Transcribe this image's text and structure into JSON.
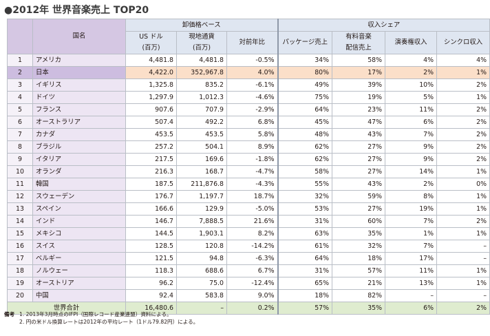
{
  "title": "●2012年 世界音楽売上 TOP20",
  "group_headers": {
    "wholesale": "卸価格ベース",
    "share": "収入シェア"
  },
  "col_headers": {
    "name": "国名",
    "usd_line1": "US ドル",
    "usd_line2": "(百万)",
    "local_line1": "現地通貨",
    "local_line2": "(百万)",
    "yoy": "対前年比",
    "package": "パッケージ売上",
    "paid_line1": "有料音楽",
    "paid_line2": "配信売上",
    "perf": "演奏権収入",
    "sync": "シンクロ収入"
  },
  "rows": [
    {
      "no": "1",
      "name": "アメリカ",
      "usd": "4,481.8",
      "local": "4,481.8",
      "yoy": "-0.5%",
      "package": "34%",
      "paid": "58%",
      "perf": "4%",
      "sync": "4%"
    },
    {
      "no": "2",
      "name": "日本",
      "usd": "4,422.0",
      "local": "352,967.8",
      "yoy": "4.0%",
      "package": "80%",
      "paid": "17%",
      "perf": "2%",
      "sync": "1%"
    },
    {
      "no": "3",
      "name": "イギリス",
      "usd": "1,325.8",
      "local": "835.2",
      "yoy": "-6.1%",
      "package": "49%",
      "paid": "39%",
      "perf": "10%",
      "sync": "2%"
    },
    {
      "no": "4",
      "name": "ドイツ",
      "usd": "1,297.9",
      "local": "1,012.3",
      "yoy": "-4.6%",
      "package": "75%",
      "paid": "19%",
      "perf": "5%",
      "sync": "1%"
    },
    {
      "no": "5",
      "name": "フランス",
      "usd": "907.6",
      "local": "707.9",
      "yoy": "-2.9%",
      "package": "64%",
      "paid": "23%",
      "perf": "11%",
      "sync": "2%"
    },
    {
      "no": "6",
      "name": "オーストラリア",
      "usd": "507.4",
      "local": "492.2",
      "yoy": "6.8%",
      "package": "45%",
      "paid": "47%",
      "perf": "6%",
      "sync": "2%"
    },
    {
      "no": "7",
      "name": "カナダ",
      "usd": "453.5",
      "local": "453.5",
      "yoy": "5.8%",
      "package": "48%",
      "paid": "43%",
      "perf": "7%",
      "sync": "2%"
    },
    {
      "no": "8",
      "name": "ブラジル",
      "usd": "257.2",
      "local": "504.1",
      "yoy": "8.9%",
      "package": "62%",
      "paid": "27%",
      "perf": "9%",
      "sync": "2%"
    },
    {
      "no": "9",
      "name": "イタリア",
      "usd": "217.5",
      "local": "169.6",
      "yoy": "-1.8%",
      "package": "62%",
      "paid": "27%",
      "perf": "9%",
      "sync": "2%"
    },
    {
      "no": "10",
      "name": "オランダ",
      "usd": "216.3",
      "local": "168.7",
      "yoy": "-4.7%",
      "package": "58%",
      "paid": "27%",
      "perf": "14%",
      "sync": "1%"
    },
    {
      "no": "11",
      "name": "韓国",
      "usd": "187.5",
      "local": "211,876.8",
      "yoy": "-4.3%",
      "package": "55%",
      "paid": "43%",
      "perf": "2%",
      "sync": "0%"
    },
    {
      "no": "12",
      "name": "スウェーデン",
      "usd": "176.7",
      "local": "1,197.7",
      "yoy": "18.7%",
      "package": "32%",
      "paid": "59%",
      "perf": "8%",
      "sync": "1%"
    },
    {
      "no": "13",
      "name": "スペイン",
      "usd": "166.6",
      "local": "129.9",
      "yoy": "-5.0%",
      "package": "53%",
      "paid": "27%",
      "perf": "19%",
      "sync": "1%"
    },
    {
      "no": "14",
      "name": "インド",
      "usd": "146.7",
      "local": "7,888.5",
      "yoy": "21.6%",
      "package": "31%",
      "paid": "60%",
      "perf": "7%",
      "sync": "2%"
    },
    {
      "no": "15",
      "name": "メキシコ",
      "usd": "144.5",
      "local": "1,903.1",
      "yoy": "8.2%",
      "package": "63%",
      "paid": "35%",
      "perf": "1%",
      "sync": "1%"
    },
    {
      "no": "16",
      "name": "スイス",
      "usd": "128.5",
      "local": "120.8",
      "yoy": "-14.2%",
      "package": "61%",
      "paid": "32%",
      "perf": "7%",
      "sync": "–"
    },
    {
      "no": "17",
      "name": "ベルギー",
      "usd": "121.5",
      "local": "94.8",
      "yoy": "-6.3%",
      "package": "64%",
      "paid": "18%",
      "perf": "17%",
      "sync": "–"
    },
    {
      "no": "18",
      "name": "ノルウェー",
      "usd": "118.3",
      "local": "688.6",
      "yoy": "6.7%",
      "package": "31%",
      "paid": "57%",
      "perf": "11%",
      "sync": "1%"
    },
    {
      "no": "19",
      "name": "オーストリア",
      "usd": "96.2",
      "local": "75.0",
      "yoy": "-12.4%",
      "package": "65%",
      "paid": "21%",
      "perf": "13%",
      "sync": "1%"
    },
    {
      "no": "20",
      "name": "中国",
      "usd": "92.4",
      "local": "583.8",
      "yoy": "9.0%",
      "package": "18%",
      "paid": "82%",
      "perf": "–",
      "sync": "–"
    }
  ],
  "total": {
    "label": "世界合計",
    "usd": "16,480.6",
    "local": "–",
    "yoy": "0.2%",
    "package": "57%",
    "paid": "35%",
    "perf": "6%",
    "sync": "2%"
  },
  "notes": {
    "label": "備考",
    "line1": "1. 2013年3月時点のIFPI（国際レコード産業連盟）資料による。",
    "line2": "2. 円の米ドル換算レートは2012年の平均レート（1ドル79.82円）による。"
  }
}
